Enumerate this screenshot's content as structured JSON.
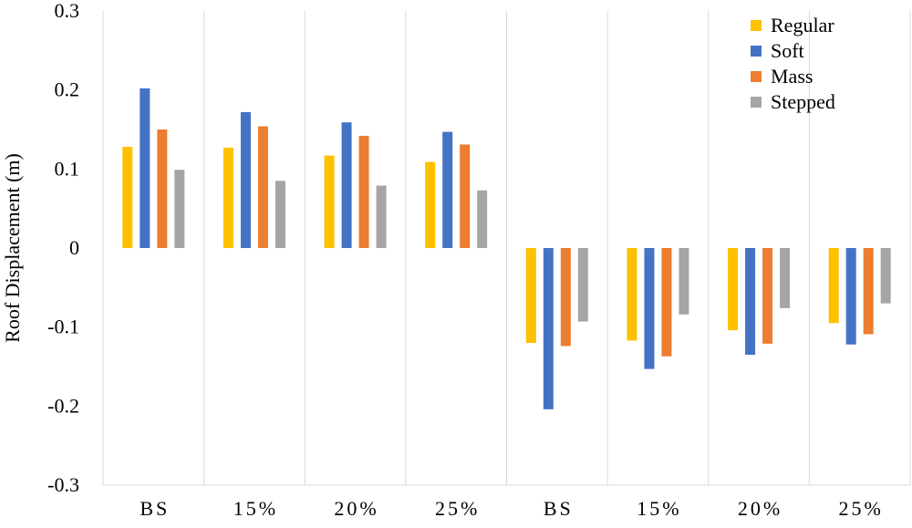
{
  "chart_data": {
    "type": "bar",
    "ylabel": "Roof Displacement (m)",
    "ylim": [
      -0.3,
      0.3
    ],
    "y_ticks": [
      0.3,
      0.2,
      0.1,
      0,
      -0.1,
      -0.2,
      -0.3
    ],
    "y_tick_labels": [
      "0.3",
      "0.2",
      "0.1",
      "0",
      "-0.1",
      "-0.2",
      "-0.3"
    ],
    "categories": [
      "BS",
      "15%",
      "20%",
      "25%",
      "BS",
      "15%",
      "20%",
      "25%"
    ],
    "grid": "vertical separators between categories",
    "legend_position": "top-right",
    "series": [
      {
        "name": "Regular",
        "color": "#FFC000",
        "values": [
          0.128,
          0.127,
          0.117,
          0.109,
          -0.12,
          -0.117,
          -0.104,
          -0.095
        ]
      },
      {
        "name": "Soft",
        "color": "#4472C4",
        "values": [
          0.202,
          0.172,
          0.159,
          0.147,
          -0.204,
          -0.153,
          -0.135,
          -0.122
        ]
      },
      {
        "name": "Mass",
        "color": "#ED7D31",
        "values": [
          0.15,
          0.154,
          0.142,
          0.131,
          -0.124,
          -0.137,
          -0.121,
          -0.109
        ]
      },
      {
        "name": "Stepped",
        "color": "#A5A5A5",
        "values": [
          0.099,
          0.085,
          0.079,
          0.073,
          -0.093,
          -0.084,
          -0.076,
          -0.07
        ]
      }
    ]
  }
}
